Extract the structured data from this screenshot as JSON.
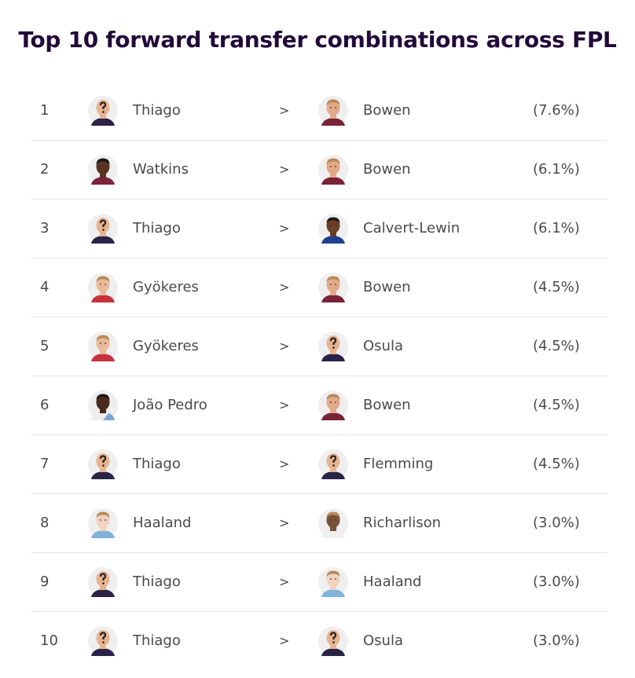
{
  "header": {
    "title": "Top 10 forward transfer combinations across FPL"
  },
  "table": {
    "rows": [
      {
        "rank": 1,
        "from": "Thiago",
        "arrow": ">",
        "to": "Bowen",
        "share": "(7.6%)"
      },
      {
        "rank": 2,
        "from": "Watkins",
        "arrow": ">",
        "to": "Bowen",
        "share": "(6.1%)"
      },
      {
        "rank": 3,
        "from": "Thiago",
        "arrow": ">",
        "to": "Calvert-Lewin",
        "share": "(6.1%)"
      },
      {
        "rank": 4,
        "from": "Gyökeres",
        "arrow": ">",
        "to": "Bowen",
        "share": "(4.5%)"
      },
      {
        "rank": 5,
        "from": "Gyökeres",
        "arrow": ">",
        "to": "Osula",
        "share": "(4.5%)"
      },
      {
        "rank": 6,
        "from": "João Pedro",
        "arrow": ">",
        "to": "Bowen",
        "share": "(4.5%)"
      },
      {
        "rank": 7,
        "from": "Thiago",
        "arrow": ">",
        "to": "Flemming",
        "share": "(4.5%)"
      },
      {
        "rank": 8,
        "from": "Haaland",
        "arrow": ">",
        "to": "Richarlison",
        "share": "(3.0%)"
      },
      {
        "rank": 9,
        "from": "Thiago",
        "arrow": ">",
        "to": "Haaland",
        "share": "(3.0%)"
      },
      {
        "rank": 10,
        "from": "Thiago",
        "arrow": ">",
        "to": "Osula",
        "share": "(3.0%)"
      }
    ]
  }
}
